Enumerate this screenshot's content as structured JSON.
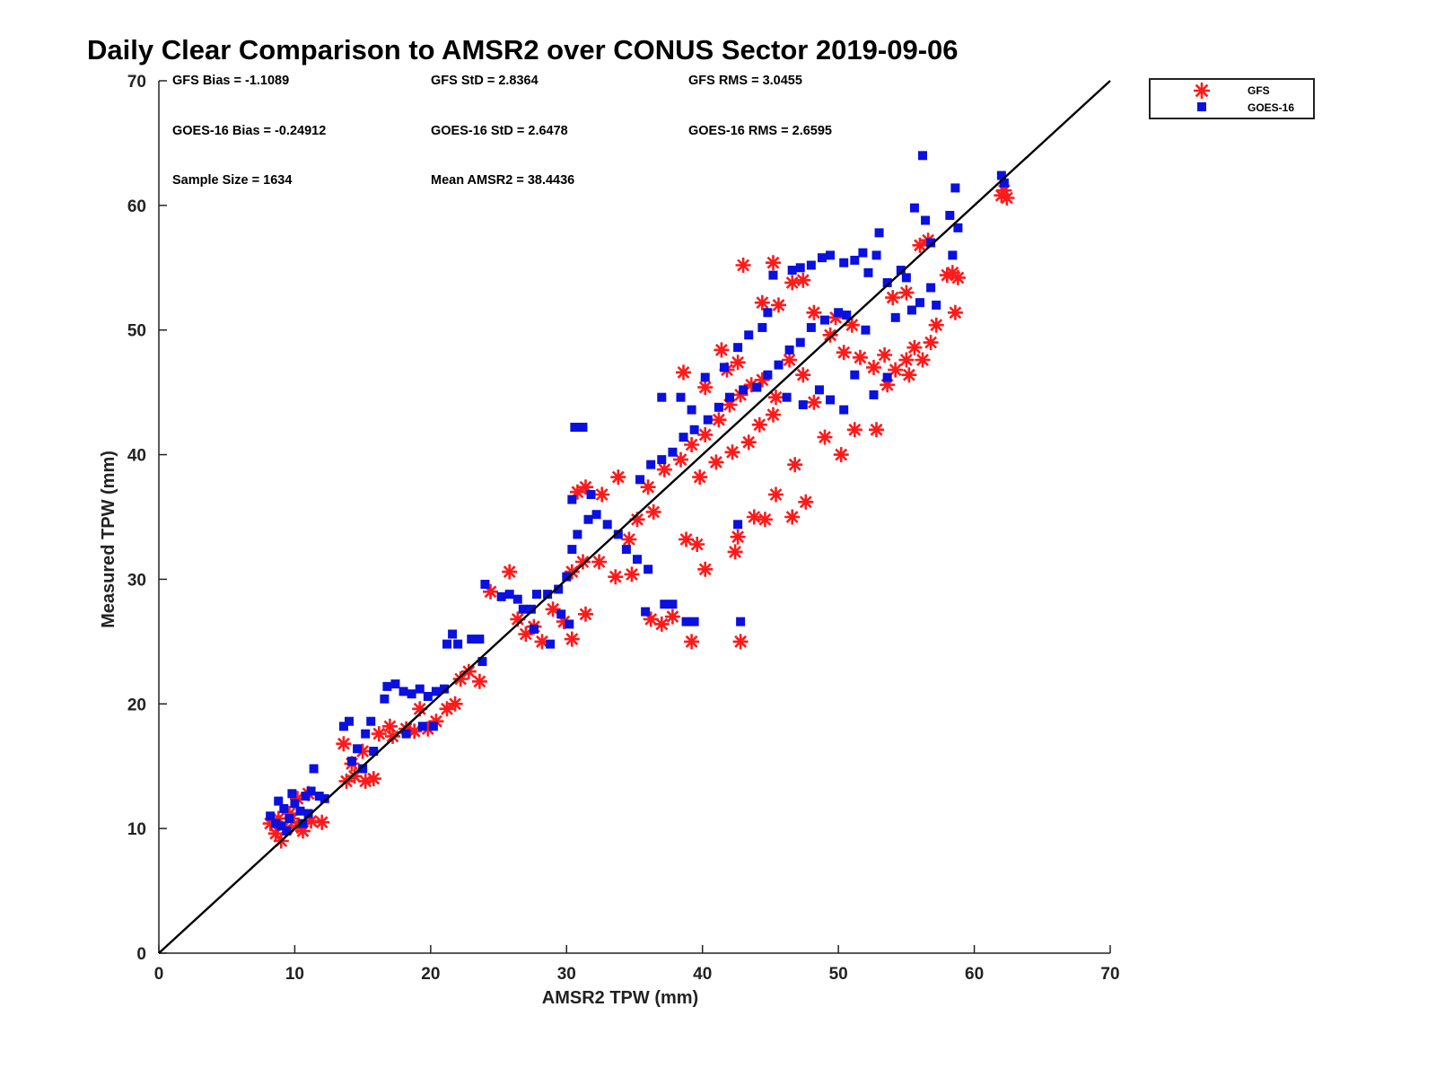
{
  "chart_data": {
    "type": "scatter",
    "title": "Daily Clear Comparison to AMSR2 over CONUS Sector 2019-09-06",
    "xlabel": "AMSR2 TPW (mm)",
    "ylabel": "Measured TPW (mm)",
    "xlim": [
      0,
      70
    ],
    "ylim": [
      0,
      70
    ],
    "xticks": [
      "0",
      "10",
      "20",
      "30",
      "40",
      "50",
      "60",
      "70"
    ],
    "yticks": [
      "0",
      "10",
      "20",
      "30",
      "40",
      "50",
      "60",
      "70"
    ],
    "legend": {
      "position": "outside-top-right",
      "entries": [
        "GFS",
        "GOES-16"
      ]
    },
    "annotations": [
      {
        "id": "gfs_bias",
        "text": "GFS Bias = -1.1089"
      },
      {
        "id": "gfs_std",
        "text": "GFS StD = 2.8364"
      },
      {
        "id": "gfs_rms",
        "text": "GFS RMS = 3.0455"
      },
      {
        "id": "goes_bias",
        "text": "GOES-16 Bias = -0.24912"
      },
      {
        "id": "goes_std",
        "text": "GOES-16 StD = 2.6478"
      },
      {
        "id": "goes_rms",
        "text": "GOES-16 RMS = 2.6595"
      },
      {
        "id": "sample_size",
        "text": "Sample Size = 1634"
      },
      {
        "id": "mean_amsr2",
        "text": "Mean AMSR2 = 38.4436"
      }
    ],
    "reference_line": {
      "from": [
        0,
        0
      ],
      "to": [
        70,
        70
      ]
    },
    "series": [
      {
        "name": "GFS",
        "marker": "asterisk",
        "color": "#ff1a1a",
        "points": [
          [
            8.2,
            10.4
          ],
          [
            8.6,
            9.6
          ],
          [
            9.0,
            9.0
          ],
          [
            9.4,
            10.0
          ],
          [
            9.8,
            10.8
          ],
          [
            10.2,
            10.2
          ],
          [
            10.6,
            9.8
          ],
          [
            11.2,
            10.6
          ],
          [
            12.0,
            10.5
          ],
          [
            10.2,
            12.4
          ],
          [
            11.0,
            12.8
          ],
          [
            9.6,
            11.2
          ],
          [
            8.8,
            10.8
          ],
          [
            13.8,
            13.8
          ],
          [
            14.4,
            14.2
          ],
          [
            15.2,
            13.8
          ],
          [
            15.8,
            14.0
          ],
          [
            14.2,
            15.2
          ],
          [
            13.6,
            16.8
          ],
          [
            15.0,
            16.2
          ],
          [
            16.2,
            17.6
          ],
          [
            17.2,
            17.4
          ],
          [
            18.2,
            18.0
          ],
          [
            17.0,
            18.2
          ],
          [
            18.8,
            17.8
          ],
          [
            19.2,
            19.6
          ],
          [
            19.8,
            18.0
          ],
          [
            20.4,
            18.6
          ],
          [
            21.2,
            19.6
          ],
          [
            21.8,
            20.0
          ],
          [
            22.2,
            22.0
          ],
          [
            22.8,
            22.6
          ],
          [
            23.6,
            21.8
          ],
          [
            24.4,
            29.0
          ],
          [
            25.8,
            30.6
          ],
          [
            26.4,
            26.8
          ],
          [
            27.0,
            25.6
          ],
          [
            27.6,
            26.2
          ],
          [
            28.2,
            25.0
          ],
          [
            29.0,
            27.6
          ],
          [
            29.8,
            26.6
          ],
          [
            30.4,
            25.2
          ],
          [
            31.4,
            27.2
          ],
          [
            30.4,
            30.6
          ],
          [
            31.2,
            31.4
          ],
          [
            32.4,
            31.4
          ],
          [
            33.6,
            30.2
          ],
          [
            34.8,
            30.4
          ],
          [
            30.8,
            37.0
          ],
          [
            31.4,
            37.4
          ],
          [
            32.6,
            36.8
          ],
          [
            33.8,
            38.2
          ],
          [
            34.6,
            33.2
          ],
          [
            35.2,
            34.8
          ],
          [
            36.4,
            35.4
          ],
          [
            36.2,
            26.8
          ],
          [
            37.0,
            26.4
          ],
          [
            37.8,
            27.0
          ],
          [
            38.8,
            33.2
          ],
          [
            39.6,
            32.8
          ],
          [
            40.2,
            30.8
          ],
          [
            42.4,
            32.2
          ],
          [
            42.6,
            33.4
          ],
          [
            39.2,
            25.0
          ],
          [
            42.8,
            25.0
          ],
          [
            43.8,
            35.0
          ],
          [
            44.6,
            34.8
          ],
          [
            45.4,
            36.8
          ],
          [
            46.6,
            35.0
          ],
          [
            47.6,
            36.2
          ],
          [
            46.8,
            39.2
          ],
          [
            36.0,
            37.4
          ],
          [
            37.2,
            38.8
          ],
          [
            38.4,
            39.6
          ],
          [
            39.2,
            40.8
          ],
          [
            40.2,
            41.6
          ],
          [
            41.2,
            42.8
          ],
          [
            42.0,
            44.0
          ],
          [
            42.8,
            44.8
          ],
          [
            43.6,
            45.6
          ],
          [
            44.4,
            46.0
          ],
          [
            45.4,
            44.6
          ],
          [
            46.4,
            47.6
          ],
          [
            47.4,
            46.4
          ],
          [
            48.2,
            44.2
          ],
          [
            49.0,
            41.4
          ],
          [
            50.2,
            40.0
          ],
          [
            51.2,
            42.0
          ],
          [
            52.8,
            42.0
          ],
          [
            39.8,
            38.2
          ],
          [
            41.0,
            39.4
          ],
          [
            42.2,
            40.2
          ],
          [
            43.4,
            41.0
          ],
          [
            44.2,
            42.4
          ],
          [
            45.2,
            43.2
          ],
          [
            41.8,
            46.8
          ],
          [
            40.2,
            45.4
          ],
          [
            38.6,
            46.6
          ],
          [
            41.4,
            48.4
          ],
          [
            42.6,
            47.4
          ],
          [
            43.0,
            55.2
          ],
          [
            45.2,
            55.4
          ],
          [
            44.4,
            52.2
          ],
          [
            45.6,
            52.0
          ],
          [
            46.6,
            53.8
          ],
          [
            47.4,
            54.0
          ],
          [
            48.2,
            51.4
          ],
          [
            49.4,
            49.6
          ],
          [
            50.4,
            48.2
          ],
          [
            51.6,
            47.8
          ],
          [
            52.6,
            47.0
          ],
          [
            53.4,
            48.0
          ],
          [
            54.2,
            46.8
          ],
          [
            55.0,
            47.6
          ],
          [
            55.6,
            48.6
          ],
          [
            56.2,
            47.6
          ],
          [
            56.8,
            49.0
          ],
          [
            57.2,
            50.4
          ],
          [
            58.6,
            51.4
          ],
          [
            55.2,
            46.4
          ],
          [
            53.6,
            45.6
          ],
          [
            56.0,
            56.8
          ],
          [
            56.6,
            57.2
          ],
          [
            58.0,
            54.4
          ],
          [
            58.4,
            54.6
          ],
          [
            58.8,
            54.2
          ],
          [
            62.2,
            61.2
          ],
          [
            62.4,
            60.6
          ],
          [
            62.0,
            60.8
          ],
          [
            54.0,
            52.6
          ],
          [
            55.0,
            53.0
          ],
          [
            49.8,
            51.0
          ],
          [
            51.0,
            50.4
          ]
        ]
      },
      {
        "name": "GOES-16",
        "marker": "square",
        "color": "#0a10e0",
        "points": [
          [
            8.2,
            11.0
          ],
          [
            8.6,
            10.4
          ],
          [
            9.2,
            11.6
          ],
          [
            9.6,
            10.8
          ],
          [
            10.0,
            12.0
          ],
          [
            10.4,
            11.4
          ],
          [
            10.8,
            12.6
          ],
          [
            11.2,
            13.0
          ],
          [
            11.4,
            14.8
          ],
          [
            9.8,
            12.8
          ],
          [
            9.0,
            10.2
          ],
          [
            10.6,
            10.4
          ],
          [
            11.8,
            12.6
          ],
          [
            12.2,
            12.4
          ],
          [
            11.0,
            11.2
          ],
          [
            8.8,
            12.2
          ],
          [
            9.4,
            9.8
          ],
          [
            13.6,
            18.2
          ],
          [
            14.0,
            18.6
          ],
          [
            14.6,
            16.4
          ],
          [
            15.2,
            17.6
          ],
          [
            15.6,
            18.6
          ],
          [
            14.2,
            15.4
          ],
          [
            15.0,
            14.8
          ],
          [
            15.8,
            16.2
          ],
          [
            16.8,
            21.4
          ],
          [
            17.4,
            21.6
          ],
          [
            18.0,
            21.0
          ],
          [
            18.6,
            20.8
          ],
          [
            19.2,
            21.2
          ],
          [
            19.8,
            20.6
          ],
          [
            20.4,
            21.0
          ],
          [
            21.0,
            21.2
          ],
          [
            16.6,
            20.4
          ],
          [
            18.2,
            17.6
          ],
          [
            19.4,
            18.2
          ],
          [
            20.2,
            18.2
          ],
          [
            21.2,
            24.8
          ],
          [
            21.6,
            25.6
          ],
          [
            22.0,
            24.8
          ],
          [
            23.0,
            25.2
          ],
          [
            23.6,
            25.2
          ],
          [
            23.8,
            23.4
          ],
          [
            24.0,
            29.6
          ],
          [
            25.2,
            28.6
          ],
          [
            25.8,
            28.8
          ],
          [
            26.4,
            28.4
          ],
          [
            26.8,
            27.6
          ],
          [
            27.4,
            27.6
          ],
          [
            27.8,
            28.8
          ],
          [
            28.6,
            28.8
          ],
          [
            29.4,
            29.2
          ],
          [
            30.0,
            30.2
          ],
          [
            29.6,
            27.2
          ],
          [
            30.2,
            26.4
          ],
          [
            28.8,
            24.8
          ],
          [
            27.6,
            26.0
          ],
          [
            30.4,
            32.4
          ],
          [
            30.8,
            33.6
          ],
          [
            31.6,
            34.8
          ],
          [
            32.2,
            35.2
          ],
          [
            33.0,
            34.4
          ],
          [
            33.8,
            33.6
          ],
          [
            34.4,
            32.4
          ],
          [
            35.2,
            31.6
          ],
          [
            36.0,
            30.8
          ],
          [
            30.4,
            36.4
          ],
          [
            31.8,
            36.8
          ],
          [
            30.6,
            42.2
          ],
          [
            31.2,
            42.2
          ],
          [
            35.4,
            38.0
          ],
          [
            36.2,
            39.2
          ],
          [
            37.0,
            39.6
          ],
          [
            37.8,
            40.2
          ],
          [
            38.6,
            41.4
          ],
          [
            39.4,
            42.0
          ],
          [
            40.4,
            42.8
          ],
          [
            41.2,
            43.8
          ],
          [
            42.0,
            44.6
          ],
          [
            43.0,
            45.2
          ],
          [
            44.0,
            45.4
          ],
          [
            44.8,
            46.4
          ],
          [
            45.6,
            47.2
          ],
          [
            46.4,
            48.4
          ],
          [
            47.2,
            49.0
          ],
          [
            48.0,
            50.2
          ],
          [
            49.0,
            50.8
          ],
          [
            50.0,
            51.4
          ],
          [
            35.8,
            27.4
          ],
          [
            37.2,
            28.0
          ],
          [
            37.8,
            28.0
          ],
          [
            38.8,
            26.6
          ],
          [
            39.4,
            26.6
          ],
          [
            42.8,
            26.6
          ],
          [
            42.6,
            34.4
          ],
          [
            37.0,
            44.6
          ],
          [
            38.4,
            44.6
          ],
          [
            39.2,
            43.6
          ],
          [
            40.2,
            46.2
          ],
          [
            41.6,
            47.0
          ],
          [
            42.6,
            48.6
          ],
          [
            43.4,
            49.6
          ],
          [
            44.4,
            50.2
          ],
          [
            44.8,
            51.4
          ],
          [
            45.2,
            54.4
          ],
          [
            46.6,
            54.8
          ],
          [
            47.2,
            55.0
          ],
          [
            48.0,
            55.2
          ],
          [
            48.8,
            55.8
          ],
          [
            49.4,
            56.0
          ],
          [
            50.4,
            55.4
          ],
          [
            51.2,
            55.6
          ],
          [
            51.8,
            56.2
          ],
          [
            52.8,
            56.0
          ],
          [
            53.0,
            57.8
          ],
          [
            52.2,
            54.6
          ],
          [
            53.6,
            53.8
          ],
          [
            54.6,
            54.8
          ],
          [
            55.0,
            54.2
          ],
          [
            46.2,
            44.6
          ],
          [
            47.4,
            44.0
          ],
          [
            48.6,
            45.2
          ],
          [
            49.4,
            44.4
          ],
          [
            50.4,
            43.6
          ],
          [
            51.2,
            46.4
          ],
          [
            52.6,
            44.8
          ],
          [
            53.6,
            46.2
          ],
          [
            54.2,
            51.0
          ],
          [
            55.4,
            51.6
          ],
          [
            56.0,
            52.2
          ],
          [
            56.8,
            53.4
          ],
          [
            57.2,
            52.0
          ],
          [
            56.2,
            64.0
          ],
          [
            55.6,
            59.8
          ],
          [
            56.4,
            58.8
          ],
          [
            56.8,
            57.0
          ],
          [
            58.2,
            59.2
          ],
          [
            58.6,
            61.4
          ],
          [
            58.8,
            58.2
          ],
          [
            58.4,
            56.0
          ],
          [
            62.0,
            62.4
          ],
          [
            62.2,
            61.8
          ],
          [
            50.6,
            51.2
          ],
          [
            52.0,
            50.0
          ]
        ]
      }
    ]
  }
}
